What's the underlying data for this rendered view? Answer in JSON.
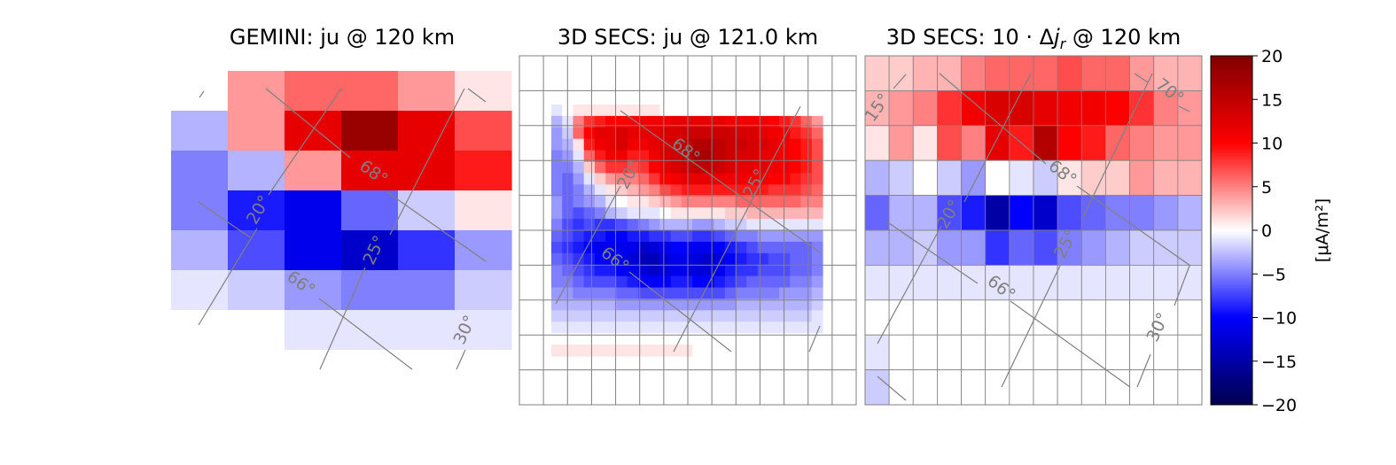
{
  "chart_data": [
    {
      "type": "heatmap",
      "title": "GEMINI: ju @ 120 km",
      "nx": 6,
      "ny": 8,
      "values": [
        [
          0,
          4,
          6,
          6,
          4,
          1
        ],
        [
          -3,
          4,
          12,
          18,
          12,
          7
        ],
        [
          -5,
          -3,
          4,
          12,
          12,
          9
        ],
        [
          -5,
          -9,
          -11,
          -6,
          -2,
          1
        ],
        [
          -3,
          -7,
          -11,
          -13,
          -8,
          -4
        ],
        [
          -1,
          -2,
          -4,
          -5,
          -5,
          -2
        ],
        [
          0,
          0,
          -1,
          -1,
          -1,
          -1
        ],
        [
          0,
          0,
          0,
          0,
          0,
          0
        ]
      ],
      "grid_labels": [
        "68°",
        "66°",
        "20°",
        "25°",
        "30°"
      ]
    },
    {
      "type": "heatmap",
      "title": "3D SECS: ju @ 121.0 km",
      "nx": 25,
      "ny": 22,
      "values": [
        [
          -1,
          0,
          1,
          1,
          1,
          1,
          1,
          1,
          1,
          1,
          0,
          0,
          0,
          0,
          0,
          0,
          0,
          0,
          0,
          0,
          0,
          0,
          0,
          0,
          0
        ],
        [
          -3,
          -1,
          5,
          8,
          9,
          10,
          10,
          10,
          11,
          11,
          11,
          12,
          12,
          12,
          12,
          12,
          11,
          11,
          11,
          11,
          10,
          9,
          8,
          6,
          4
        ],
        [
          -4,
          -2,
          6,
          10,
          12,
          12,
          13,
          12,
          12,
          12,
          13,
          13,
          14,
          14,
          14,
          14,
          14,
          13,
          13,
          12,
          11,
          11,
          9,
          8,
          6
        ],
        [
          -4,
          -3,
          1,
          9,
          11,
          12,
          13,
          11,
          11,
          12,
          13,
          14,
          15,
          16,
          16,
          15,
          14,
          14,
          13,
          13,
          12,
          11,
          10,
          9,
          7
        ],
        [
          -5,
          -4,
          -1,
          6,
          9,
          11,
          11,
          9,
          9,
          11,
          13,
          14,
          15,
          17,
          17,
          15,
          14,
          13,
          13,
          12,
          12,
          11,
          10,
          9,
          7
        ],
        [
          -5,
          -5,
          -3,
          2,
          6,
          8,
          8,
          7,
          8,
          10,
          12,
          13,
          14,
          15,
          15,
          14,
          13,
          12,
          12,
          12,
          11,
          11,
          10,
          9,
          7
        ],
        [
          -5,
          -6,
          -4,
          -1,
          2,
          4,
          5,
          5,
          6,
          8,
          10,
          11,
          12,
          12,
          12,
          12,
          11,
          11,
          11,
          11,
          10,
          10,
          9,
          8,
          7
        ],
        [
          -5,
          -6,
          -5,
          -3,
          -1,
          1,
          2,
          3,
          4,
          5,
          7,
          8,
          9,
          9,
          9,
          9,
          9,
          9,
          9,
          9,
          8,
          8,
          8,
          7,
          6
        ],
        [
          -4,
          -6,
          -5,
          -4,
          -3,
          -1,
          0,
          1,
          1,
          2,
          3,
          4,
          5,
          5,
          5,
          5,
          5,
          6,
          6,
          6,
          6,
          6,
          6,
          5,
          5
        ],
        [
          -4,
          -6,
          -7,
          -6,
          -5,
          -3,
          -2,
          -1,
          -1,
          -1,
          0,
          1,
          1,
          1,
          1,
          1,
          2,
          2,
          3,
          3,
          3,
          3,
          3,
          3,
          3
        ],
        [
          -5,
          -7,
          -8,
          -7,
          -8,
          -8,
          -7,
          -6,
          -5,
          -4,
          -3,
          -3,
          -3,
          -4,
          -4,
          -3,
          -2,
          -2,
          -1,
          -1,
          -1,
          -1,
          -1,
          -1,
          -1
        ],
        [
          -6,
          -7,
          -8,
          -9,
          -9,
          -10,
          -10,
          -9,
          -9,
          -8,
          -8,
          -7,
          -7,
          -8,
          -8,
          -7,
          -6,
          -5,
          -5,
          -4,
          -4,
          -4,
          -4,
          -4,
          -4
        ],
        [
          -7,
          -8,
          -9,
          -10,
          -11,
          -11,
          -11,
          -11,
          -13,
          -12,
          -11,
          -10,
          -10,
          -11,
          -11,
          -10,
          -9,
          -8,
          -7,
          -6,
          -6,
          -6,
          -6,
          -6,
          -5
        ],
        [
          -6,
          -7,
          -8,
          -9,
          -10,
          -10,
          -11,
          -12,
          -14,
          -14,
          -12,
          -11,
          -11,
          -12,
          -13,
          -12,
          -10,
          -9,
          -8,
          -8,
          -7,
          -7,
          -6,
          -6,
          -5
        ],
        [
          -5,
          -6,
          -7,
          -8,
          -9,
          -9,
          -10,
          -11,
          -12,
          -13,
          -12,
          -11,
          -11,
          -12,
          -12,
          -11,
          -9,
          -8,
          -8,
          -7,
          -7,
          -7,
          -6,
          -6,
          -5
        ],
        [
          -5,
          -5,
          -6,
          -7,
          -7,
          -7,
          -8,
          -9,
          -10,
          -10,
          -10,
          -9,
          -9,
          -10,
          -10,
          -9,
          -8,
          -7,
          -6,
          -6,
          -6,
          -6,
          -5,
          -5,
          -4
        ],
        [
          -4,
          -4,
          -5,
          -5,
          -5,
          -5,
          -6,
          -6,
          -7,
          -7,
          -7,
          -7,
          -7,
          -7,
          -7,
          -7,
          -6,
          -5,
          -5,
          -5,
          -5,
          -4,
          -4,
          -4,
          -3
        ],
        [
          -3,
          -3,
          -3,
          -3,
          -3,
          -3,
          -4,
          -4,
          -4,
          -4,
          -4,
          -4,
          -4,
          -4,
          -4,
          -4,
          -4,
          -3,
          -3,
          -3,
          -3,
          -3,
          -3,
          -3,
          -2
        ],
        [
          -2,
          -2,
          -2,
          -2,
          -2,
          -2,
          -2,
          -2,
          -2,
          -2,
          -2,
          -2,
          -2,
          -2,
          -2,
          -2,
          -2,
          -2,
          -2,
          -2,
          -2,
          -2,
          -2,
          -2,
          -1
        ],
        [
          -1,
          -1,
          -1,
          -1,
          -1,
          -1,
          -1,
          -1,
          -1,
          -1,
          -1,
          -1,
          -1,
          -1,
          -1,
          -1,
          -1,
          -1,
          -1,
          -1,
          -1,
          -1,
          -1,
          -1,
          -1
        ],
        [
          0,
          0,
          0,
          0,
          0,
          0,
          0,
          0,
          0,
          0,
          0,
          0,
          0,
          0,
          0,
          0,
          0,
          0,
          0,
          0,
          0,
          0,
          0,
          0,
          0
        ],
        [
          1,
          1,
          1,
          1,
          1,
          1,
          1,
          1,
          1,
          1,
          1,
          1,
          1,
          0,
          0,
          0,
          0,
          0,
          0,
          0,
          0,
          0,
          0,
          0,
          0
        ]
      ],
      "grid_labels": [
        "68°",
        "66°",
        "20°",
        "25°"
      ]
    },
    {
      "type": "heatmap",
      "title": "3D SECS: 10·Δj_r @ 120 km",
      "nx": 14,
      "ny": 10,
      "values": [
        [
          2,
          2,
          3,
          3,
          5,
          6,
          6,
          6,
          7,
          6,
          6,
          4,
          3,
          3
        ],
        [
          3,
          4,
          5,
          8,
          11,
          13,
          13,
          12,
          11,
          11,
          10,
          8,
          5,
          4
        ],
        [
          1,
          4,
          1,
          7,
          5,
          12,
          9,
          16,
          10,
          9,
          6,
          5,
          4,
          4
        ],
        [
          -3,
          -2,
          0,
          -2,
          -4,
          0,
          -1,
          -2,
          1,
          2,
          2,
          4,
          3,
          3
        ],
        [
          -6,
          -3,
          -3,
          -7,
          -9,
          -15,
          -10,
          -13,
          -7,
          -6,
          -5,
          -5,
          -4,
          -3
        ],
        [
          -3,
          -3,
          -2,
          -4,
          -4,
          -8,
          -6,
          -7,
          -5,
          -4,
          -3,
          -2,
          -2,
          -2
        ],
        [
          -1,
          -1,
          -1,
          -1,
          -1,
          -1,
          -1,
          -1,
          -1,
          -1,
          -1,
          -1,
          -1,
          -1
        ],
        [
          0,
          0,
          0,
          0,
          0,
          0,
          0,
          0,
          0,
          0,
          0,
          0,
          0,
          0
        ],
        [
          -1,
          0,
          0,
          0,
          0,
          0,
          0,
          0,
          0,
          0,
          0,
          0,
          0,
          0
        ],
        [
          -2,
          0,
          0,
          0,
          0,
          0,
          0,
          0,
          0,
          0,
          0,
          0,
          0,
          0
        ]
      ],
      "grid_labels": [
        "70°",
        "68°",
        "66°",
        "15°",
        "20°",
        "25°",
        "30°"
      ]
    }
  ],
  "colorbar": {
    "label": "[μA/m²]",
    "vmin": -20,
    "vmax": 20,
    "ticks": [
      20,
      15,
      10,
      5,
      0,
      -5,
      -10,
      -15,
      -20
    ],
    "colormap": "seismic"
  }
}
